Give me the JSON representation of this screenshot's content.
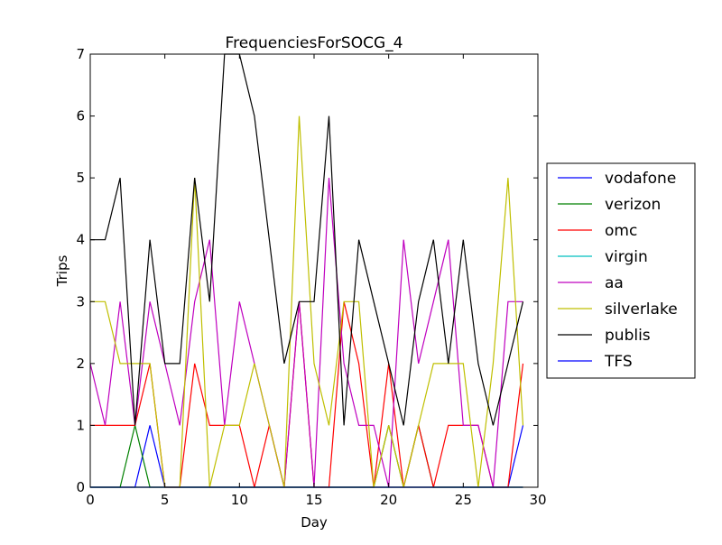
{
  "chart_data": {
    "type": "line",
    "title": "FrequenciesForSOCG_4",
    "xlabel": "Day",
    "ylabel": "Trips",
    "xlim": [
      0,
      30
    ],
    "ylim": [
      0,
      7
    ],
    "xticks": [
      0,
      5,
      10,
      15,
      20,
      25,
      30
    ],
    "yticks": [
      0,
      1,
      2,
      3,
      4,
      5,
      6,
      7
    ],
    "legend": "center-right outside",
    "x": [
      0,
      1,
      2,
      3,
      4,
      5,
      6,
      7,
      8,
      9,
      10,
      11,
      12,
      13,
      14,
      15,
      16,
      17,
      18,
      19,
      20,
      21,
      22,
      23,
      24,
      25,
      26,
      27,
      28,
      29
    ],
    "series": [
      {
        "name": "vodafone",
        "color": "#0000ff",
        "values": [
          0,
          0,
          0,
          0,
          1,
          0,
          0,
          0,
          0,
          0,
          0,
          0,
          0,
          0,
          0,
          0,
          0,
          0,
          0,
          0,
          0,
          0,
          0,
          0,
          0,
          0,
          0,
          0,
          0,
          1
        ]
      },
      {
        "name": "verizon",
        "color": "#008000",
        "values": [
          0,
          0,
          0,
          1,
          0,
          0,
          0,
          0,
          0,
          0,
          0,
          0,
          0,
          0,
          0,
          0,
          0,
          0,
          0,
          0,
          1,
          0,
          1,
          0,
          0,
          0,
          0,
          0,
          0,
          0
        ]
      },
      {
        "name": "omc",
        "color": "#ff0000",
        "values": [
          1,
          1,
          1,
          1,
          2,
          0,
          0,
          2,
          1,
          1,
          1,
          0,
          1,
          0,
          3,
          0,
          0,
          3,
          2,
          0,
          2,
          0,
          1,
          0,
          1,
          1,
          1,
          0,
          0,
          2
        ]
      },
      {
        "name": "virgin",
        "color": "#00bfbf",
        "values": [
          0,
          0,
          0,
          0,
          0,
          0,
          0,
          0,
          0,
          0,
          0,
          0,
          0,
          0,
          0,
          0,
          0,
          0,
          0,
          0,
          0,
          0,
          0,
          0,
          0,
          0,
          0,
          0,
          0,
          0
        ]
      },
      {
        "name": "aa",
        "color": "#bf00bf",
        "values": [
          2,
          1,
          3,
          1,
          3,
          2,
          1,
          3,
          4,
          1,
          3,
          2,
          1,
          0,
          3,
          0,
          5,
          2,
          1,
          1,
          0,
          4,
          2,
          3,
          4,
          1,
          1,
          0,
          3,
          3
        ]
      },
      {
        "name": "silverlake",
        "color": "#bfbf00",
        "values": [
          3,
          3,
          2,
          2,
          2,
          0,
          0,
          5,
          0,
          1,
          1,
          2,
          1,
          0,
          6,
          2,
          1,
          3,
          3,
          0,
          1,
          0,
          1,
          2,
          2,
          2,
          0,
          2,
          5,
          1
        ]
      },
      {
        "name": "publis",
        "color": "#000000",
        "values": [
          4,
          4,
          5,
          1,
          4,
          2,
          2,
          5,
          3,
          7,
          7,
          6,
          4,
          2,
          3,
          3,
          6,
          1,
          4,
          3,
          2,
          1,
          3,
          4,
          2,
          4,
          2,
          1,
          2,
          3
        ]
      },
      {
        "name": "TFS",
        "color": "#0000ff",
        "values": [
          0,
          0,
          0,
          0,
          0,
          0,
          0,
          0,
          0,
          0,
          0,
          0,
          0,
          0,
          0,
          0,
          0,
          0,
          0,
          0,
          0,
          0,
          0,
          0,
          0,
          0,
          0,
          0,
          0,
          0
        ]
      }
    ]
  }
}
